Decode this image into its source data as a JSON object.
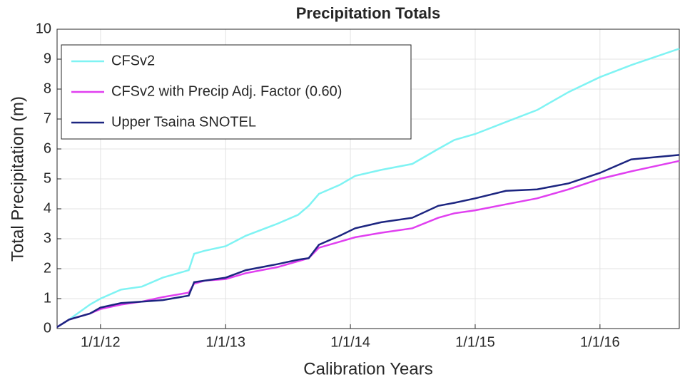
{
  "chart_data": {
    "type": "line",
    "title": "Precipitation Totals",
    "x_label": "Calibration Years",
    "y_label": "Total Precipitation (m)",
    "x": [
      "2011-08-27",
      "2011-10-01",
      "2011-12-01",
      "2012-01-01",
      "2012-03-01",
      "2012-05-01",
      "2012-07-01",
      "2012-09-15",
      "2012-10-01",
      "2012-11-01",
      "2013-01-01",
      "2013-03-01",
      "2013-06-01",
      "2013-08-01",
      "2013-09-01",
      "2013-10-01",
      "2013-12-01",
      "2014-01-15",
      "2014-04-01",
      "2014-07-01",
      "2014-09-15",
      "2014-11-01",
      "2015-01-01",
      "2015-04-01",
      "2015-07-01",
      "2015-10-01",
      "2016-01-01",
      "2016-04-01",
      "2016-08-20"
    ],
    "series": [
      {
        "name": "CFSv2",
        "color": "#7ff3f3",
        "values": [
          0.05,
          0.3,
          0.8,
          1.0,
          1.3,
          1.4,
          1.7,
          1.95,
          2.5,
          2.6,
          2.75,
          3.1,
          3.5,
          3.8,
          4.1,
          4.5,
          4.8,
          5.1,
          5.3,
          5.5,
          6.0,
          6.3,
          6.5,
          6.9,
          7.3,
          7.9,
          8.4,
          8.8,
          9.35
        ]
      },
      {
        "name": "CFSv2 with Precip Adj. Factor (0.60)",
        "color": "#e03ff0",
        "values": [
          0.05,
          0.3,
          0.5,
          0.65,
          0.8,
          0.9,
          1.05,
          1.2,
          1.5,
          1.6,
          1.65,
          1.85,
          2.05,
          2.25,
          2.35,
          2.7,
          2.9,
          3.05,
          3.2,
          3.35,
          3.7,
          3.85,
          3.95,
          4.15,
          4.35,
          4.65,
          5.0,
          5.25,
          5.6
        ]
      },
      {
        "name": "Upper Tsaina SNOTEL",
        "color": "#1c2580",
        "values": [
          0.05,
          0.3,
          0.5,
          0.7,
          0.85,
          0.9,
          0.95,
          1.1,
          1.55,
          1.6,
          1.7,
          1.95,
          2.15,
          2.3,
          2.35,
          2.8,
          3.1,
          3.35,
          3.55,
          3.7,
          4.1,
          4.2,
          4.35,
          4.6,
          4.65,
          4.85,
          5.2,
          5.65,
          5.8
        ]
      }
    ],
    "xlim": [
      "2011-08-27",
      "2016-08-20"
    ],
    "xticks": [
      {
        "value": "2012-01-01",
        "label": "1/1/12"
      },
      {
        "value": "2013-01-01",
        "label": "1/1/13"
      },
      {
        "value": "2014-01-01",
        "label": "1/1/14"
      },
      {
        "value": "2015-01-01",
        "label": "1/1/15"
      },
      {
        "value": "2016-01-01",
        "label": "1/1/16"
      }
    ],
    "ylim": [
      0,
      10
    ],
    "yticks": [
      0,
      1,
      2,
      3,
      4,
      5,
      6,
      7,
      8,
      9,
      10
    ],
    "grid": true,
    "legend": "upper left"
  }
}
